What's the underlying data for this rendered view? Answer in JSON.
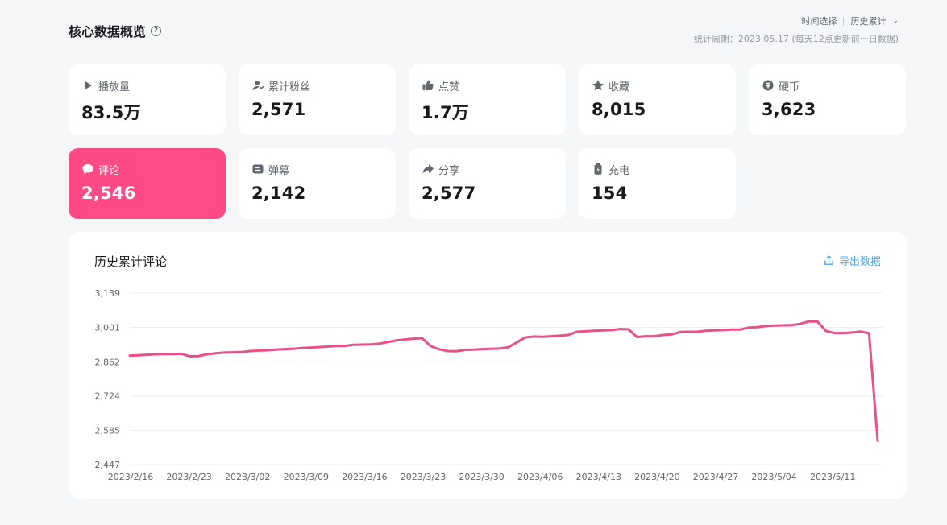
{
  "header": {
    "title": "核心数据概览",
    "help": "?",
    "time_select_label": "时间选择",
    "time_select_value": "历史累计",
    "period_text": "统计周期：2023.05.17 (每天12点更新前一日数据)"
  },
  "cards": [
    {
      "id": "play",
      "label": "播放量",
      "value": "83.5万",
      "icon": "play-icon",
      "active": false
    },
    {
      "id": "fans",
      "label": "累计粉丝",
      "value": "2,571",
      "icon": "fans-icon",
      "active": false
    },
    {
      "id": "like",
      "label": "点赞",
      "value": "1.7万",
      "icon": "thumbs-up-icon",
      "active": false
    },
    {
      "id": "fav",
      "label": "收藏",
      "value": "8,015",
      "icon": "star-icon",
      "active": false
    },
    {
      "id": "coin",
      "label": "硬币",
      "value": "3,623",
      "icon": "coin-icon",
      "active": false
    },
    {
      "id": "comment",
      "label": "评论",
      "value": "2,546",
      "icon": "comment-icon",
      "active": true
    },
    {
      "id": "danmaku",
      "label": "弹幕",
      "value": "2,142",
      "icon": "danmaku-icon",
      "active": false
    },
    {
      "id": "share",
      "label": "分享",
      "value": "2,577",
      "icon": "share-icon",
      "active": false
    },
    {
      "id": "charge",
      "label": "充电",
      "value": "154",
      "icon": "battery-icon",
      "active": false
    }
  ],
  "chart": {
    "title": "历史累计评论",
    "export_label": "导出数据"
  },
  "colors": {
    "accent": "#ff4a85",
    "line": "#e8508a",
    "link": "#4ba7e0"
  },
  "chart_data": {
    "type": "line",
    "ylim": [
      2447,
      3139
    ],
    "yticks": [
      3139,
      3001,
      2862,
      2724,
      2585,
      2447
    ],
    "ytick_labels": [
      "3,139",
      "3,001",
      "2,862",
      "2,724",
      "2,585",
      "2,447"
    ],
    "xtick_labels": [
      "2023/2/16",
      "2023/2/23",
      "2023/3/02",
      "2023/3/09",
      "2023/3/16",
      "2023/3/23",
      "2023/3/30",
      "2023/4/06",
      "2023/4/13",
      "2023/4/20",
      "2023/4/27",
      "2023/5/04",
      "2023/5/11"
    ],
    "x_start": "2023/2/16",
    "grid": true,
    "series": [
      {
        "values": [
          2887,
          2888,
          2890,
          2892,
          2893,
          2893,
          2894,
          2884,
          2885,
          2892,
          2896,
          2899,
          2900,
          2901,
          2905,
          2907,
          2908,
          2911,
          2913,
          2914,
          2917,
          2919,
          2921,
          2923,
          2926,
          2926,
          2930,
          2931,
          2932,
          2935,
          2941,
          2948,
          2952,
          2955,
          2957,
          2925,
          2912,
          2905,
          2904,
          2910,
          2911,
          2913,
          2914,
          2915,
          2920,
          2940,
          2960,
          2964,
          2963,
          2965,
          2967,
          2970,
          2983,
          2985,
          2987,
          2989,
          2990,
          2994,
          2993,
          2962,
          2965,
          2965,
          2970,
          2972,
          2982,
          2983,
          2983,
          2987,
          2989,
          2990,
          2992,
          2992,
          3000,
          3002,
          3006,
          3008,
          3009,
          3010,
          3015,
          3025,
          3024,
          2986,
          2978,
          2978,
          2980,
          2984,
          2977,
          2543
        ]
      }
    ]
  }
}
